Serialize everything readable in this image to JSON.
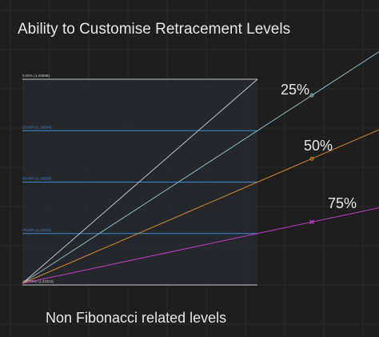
{
  "title": "Ability to Customise Retracement Levels",
  "subtitle": "Non Fibonacci related levels",
  "colors": {
    "background": "#1e1e1e",
    "grid": "#2b2b2b",
    "band_fill": "#26292f",
    "boundary_line": "#c8c8c8",
    "level_line": "#3f88d6",
    "level_label": "#c8c8c8",
    "fan_lines": [
      "#c6c6c6",
      "#8ab8c8",
      "#d48a2e",
      "#c23ec7"
    ]
  },
  "chart_data": {
    "type": "line",
    "title": "Ability to Customise Retracement Levels",
    "subtitle": "Non Fibonacci related levels",
    "levels": [
      {
        "label": "0.00% (1.26696)",
        "ratio": 0.0,
        "price": 1.26696
      },
      {
        "label": "25.00% (1.25604)",
        "ratio": 0.25,
        "price": 1.25604
      },
      {
        "label": "50.00% (1.24510)",
        "ratio": 0.5,
        "price": 1.2451
      },
      {
        "label": "75.00% (1.23416)",
        "ratio": 0.75,
        "price": 1.23416
      },
      {
        "label": "100.00% (1.22322)",
        "ratio": 1.0,
        "price": 1.22322
      }
    ],
    "fan_lines": [
      {
        "label": "",
        "ratio": 0.0,
        "marker": "none"
      },
      {
        "label": "25%",
        "ratio": 0.25,
        "marker": "circle"
      },
      {
        "label": "50%",
        "ratio": 0.5,
        "marker": "circle"
      },
      {
        "label": "75%",
        "ratio": 0.75,
        "marker": "cross"
      }
    ],
    "grid": true
  }
}
